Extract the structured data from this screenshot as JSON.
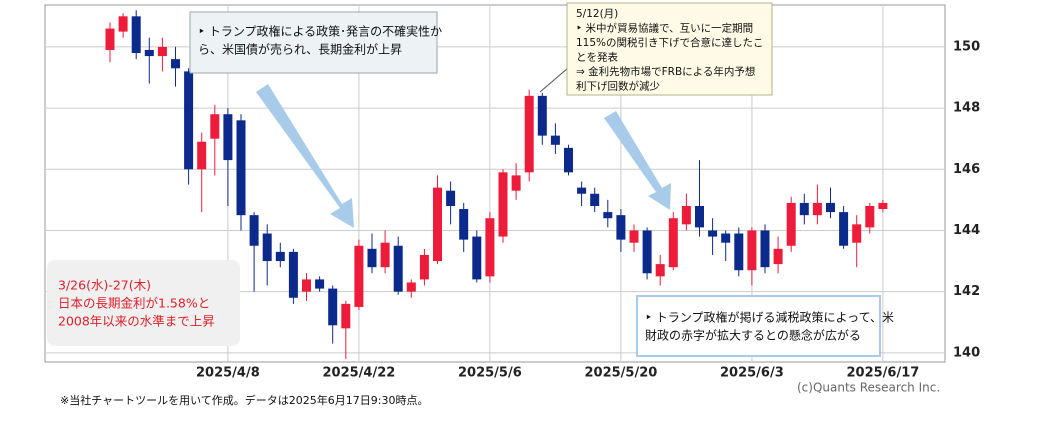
{
  "chart_data": {
    "type": "candlestick",
    "categories": [
      null,
      null,
      null,
      null,
      null,
      null,
      null,
      null,
      null,
      "2025/4/8",
      null,
      null,
      null,
      null,
      null,
      null,
      null,
      null,
      null,
      "2025/4/22",
      null,
      null,
      null,
      null,
      null,
      null,
      null,
      null,
      null,
      "2025/5/6",
      null,
      null,
      null,
      null,
      null,
      null,
      null,
      null,
      null,
      "2025/5/20",
      null,
      null,
      null,
      null,
      null,
      null,
      null,
      null,
      null,
      "2025/6/3",
      null,
      null,
      null,
      null,
      null,
      null,
      null,
      null,
      null,
      "2025/6/17"
    ],
    "open": [
      149.9,
      150.5,
      151.0,
      149.9,
      149.7,
      149.6,
      149.2,
      146.0,
      147.0,
      147.8,
      147.6,
      144.5,
      143.9,
      143.3,
      143.3,
      142.0,
      142.4,
      142.1,
      140.8,
      141.5,
      143.4,
      142.8,
      143.5,
      142.0,
      142.4,
      143.0,
      145.3,
      144.7,
      143.8,
      142.5,
      143.8,
      145.3,
      145.9,
      148.4,
      147.1,
      146.7,
      145.4,
      145.2,
      144.6,
      144.5,
      143.6,
      144.0,
      142.5,
      142.8,
      144.2,
      144.8,
      144.0,
      143.9,
      143.9,
      142.7,
      144.0,
      142.9,
      143.5,
      144.9,
      144.5,
      144.9,
      144.6,
      143.6,
      144.1,
      144.7
    ],
    "high": [
      150.8,
      151.1,
      151.2,
      150.3,
      150.3,
      150.0,
      149.3,
      147.2,
      148.1,
      148.0,
      147.8,
      144.6,
      144.2,
      143.6,
      143.4,
      142.6,
      142.5,
      142.2,
      141.7,
      143.7,
      143.9,
      144.0,
      143.8,
      142.4,
      143.4,
      145.8,
      145.6,
      144.9,
      144.0,
      144.6,
      146.0,
      146.2,
      148.6,
      148.5,
      147.5,
      146.8,
      145.6,
      145.4,
      145.0,
      144.7,
      144.2,
      144.1,
      143.2,
      144.6,
      145.2,
      146.3,
      144.4,
      144.0,
      144.1,
      144.1,
      144.2,
      143.8,
      145.1,
      145.2,
      145.5,
      145.4,
      144.8,
      144.5,
      144.9,
      145.0
    ],
    "low": [
      149.5,
      150.3,
      149.6,
      148.8,
      149.2,
      148.7,
      145.5,
      144.6,
      145.8,
      144.8,
      144.0,
      142.0,
      142.2,
      142.8,
      141.6,
      141.7,
      142.0,
      140.3,
      139.8,
      141.4,
      142.6,
      142.6,
      141.9,
      141.8,
      142.2,
      142.9,
      144.2,
      143.3,
      142.3,
      142.3,
      143.6,
      145.0,
      145.6,
      146.8,
      146.5,
      145.8,
      144.8,
      144.6,
      144.1,
      143.3,
      143.3,
      142.4,
      142.2,
      142.7,
      144.0,
      143.8,
      143.2,
      143.0,
      142.5,
      142.2,
      142.6,
      142.6,
      143.3,
      144.2,
      144.2,
      144.4,
      143.4,
      142.8,
      143.9,
      144.6
    ],
    "close": [
      150.6,
      151.0,
      149.8,
      149.7,
      150.0,
      149.3,
      146.0,
      146.9,
      147.8,
      146.3,
      144.5,
      143.5,
      143.0,
      143.0,
      141.8,
      142.4,
      142.1,
      140.9,
      141.6,
      143.5,
      142.8,
      143.6,
      142.0,
      142.3,
      143.2,
      145.4,
      144.8,
      143.7,
      142.4,
      144.4,
      145.9,
      145.8,
      148.4,
      147.1,
      146.8,
      145.9,
      145.2,
      144.8,
      144.4,
      143.7,
      144.0,
      142.6,
      142.9,
      144.4,
      144.8,
      144.1,
      143.8,
      143.6,
      142.7,
      144.0,
      142.8,
      143.4,
      144.9,
      144.5,
      144.9,
      144.6,
      143.5,
      144.2,
      144.8,
      144.9
    ],
    "up_color": "#ee1c3b",
    "down_color": "#0b2a8c",
    "ylim": [
      139.7,
      151.37
    ],
    "yticks": [
      140,
      142,
      144,
      146,
      148,
      150
    ],
    "grid": true,
    "annotations": [
      {
        "lines": [
          "‣ トランプ政権による政策･発言の不確実性か",
          "ら、米国債が売られ、長期金利が上昇"
        ]
      },
      {
        "lines": [
          "5/12(月)",
          "‣ 米中が貿易協議で、互いに一定期間",
          "115%の関税引き下げで合意に達したこ",
          "とを発表",
          "⇒ 金利先物市場でFRBによる年内予想",
          "利下げ回数が減少"
        ]
      },
      {
        "lines": [
          "3/26(水)-27(木)",
          "日本の長期金利が1.58%と",
          "2008年以来の水準まで上昇"
        ]
      },
      {
        "lines": [
          "‣ トランプ政権が掲げる減税政策によって、米",
          "財政の赤字が拡大するとの懸念が広がる"
        ]
      }
    ],
    "copyright": "(c)Quants Research Inc.",
    "footnote": "※当社チャートツールを用いて作成。データは2025年6月17日9:30時点。"
  }
}
